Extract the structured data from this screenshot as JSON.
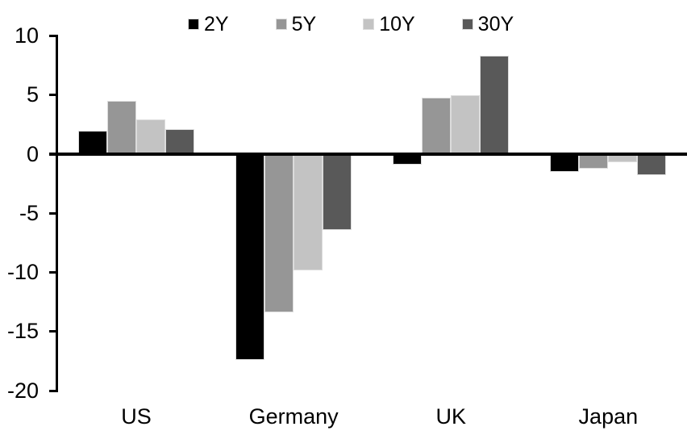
{
  "chart_data": {
    "type": "bar",
    "title": "",
    "xlabel": "",
    "ylabel": "",
    "categories": [
      "US",
      "Germany",
      "UK",
      "Japan"
    ],
    "series": [
      {
        "name": "2Y",
        "color": "#000000",
        "values": [
          2.0,
          -17.4,
          -0.9,
          -1.5
        ]
      },
      {
        "name": "5Y",
        "color": "#969696",
        "values": [
          4.5,
          -13.4,
          4.8,
          -1.2
        ]
      },
      {
        "name": "10Y",
        "color": "#c3c3c3",
        "values": [
          2.9,
          -9.8,
          5.0,
          -0.7
        ]
      },
      {
        "name": "30Y",
        "color": "#595959",
        "values": [
          2.1,
          -6.4,
          8.3,
          -1.8
        ]
      }
    ],
    "ylim": [
      -20,
      10
    ],
    "yticks": [
      10,
      5,
      0,
      -5,
      -10,
      -15,
      -20
    ],
    "grid": false,
    "legend_position": "top-center",
    "background_color": "#ffffff",
    "axis_color": "#000000",
    "bar_outline_color": "#dcdcdc",
    "text_color": "#000000"
  }
}
